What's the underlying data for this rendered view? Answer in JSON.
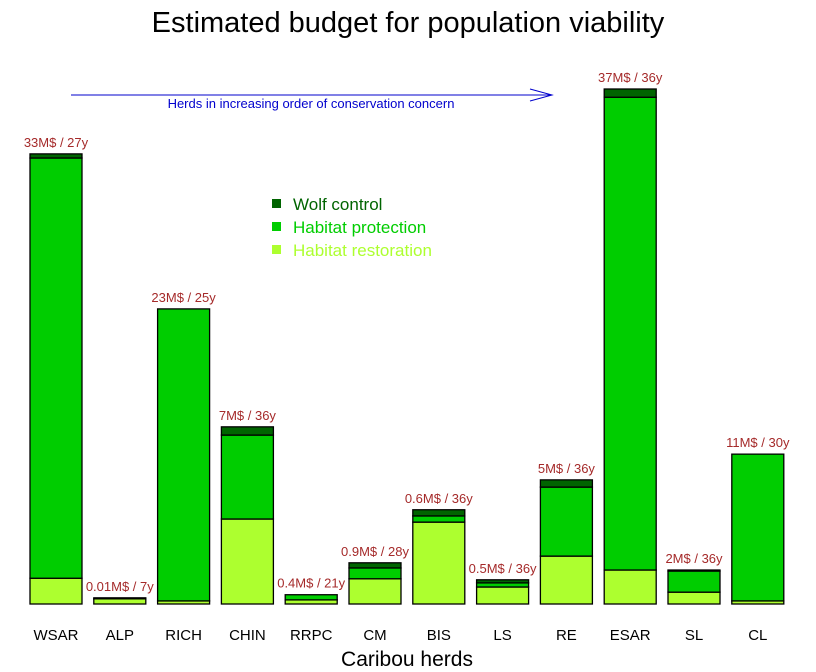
{
  "chart_data": {
    "type": "bar",
    "stacked": true,
    "title": "Estimated budget for population viability",
    "xlabel": "Caribou herds",
    "ylabel": "",
    "y_axis_shown": false,
    "y_units": "relative bar height (tallest bar = 100)",
    "ylim": [
      0,
      100
    ],
    "grid": false,
    "legend_position": "top-center",
    "categories": [
      "WSAR",
      "ALP",
      "RICH",
      "CHIN",
      "RRPC",
      "CM",
      "BIS",
      "LS",
      "RE",
      "ESAR",
      "SL",
      "CL"
    ],
    "series": [
      {
        "name": "Habitat restoration",
        "color": "#adff2f",
        "values": [
          5.0,
          1.0,
          0.6,
          16.5,
          0.8,
          4.9,
          15.9,
          3.3,
          9.3,
          6.6,
          2.3,
          0.6
        ]
      },
      {
        "name": "Habitat protection",
        "color": "#00cd00",
        "values": [
          81.6,
          0.0,
          56.7,
          16.3,
          1.0,
          2.1,
          1.2,
          0.8,
          13.4,
          91.8,
          4.1,
          28.5
        ]
      },
      {
        "name": "Wolf control",
        "color": "#006400",
        "values": [
          0.8,
          0.2,
          0.0,
          1.6,
          0.0,
          1.0,
          1.2,
          0.6,
          1.4,
          1.6,
          0.2,
          0.0
        ]
      }
    ],
    "data_labels": [
      "33M$ / 27y",
      "0.01M$ / 7y",
      "23M$ / 25y",
      "7M$ / 36y",
      "0.4M$ / 21y",
      "0.9M$ / 28y",
      "0.6M$ / 36y",
      "0.5M$ / 36y",
      "5M$ / 36y",
      "37M$ / 36y",
      "2M$ / 36y",
      "11M$ / 30y"
    ],
    "legend_order": [
      "Wolf control",
      "Habitat protection",
      "Habitat restoration"
    ],
    "annotations": [
      {
        "type": "arrow",
        "text": "Herds in increasing order of conservation concern",
        "color": "#0000cd",
        "direction": "right"
      }
    ],
    "label_color": "#a52a2a"
  }
}
